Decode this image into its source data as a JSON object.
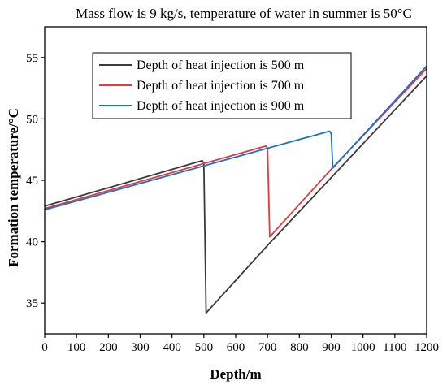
{
  "chart_data": {
    "type": "line",
    "title": "Mass flow is 9 kg/s, temperature of water in summer is 50°C",
    "xlabel": "Depth/m",
    "ylabel": "Formation temperature/°C",
    "xlim": [
      0,
      1200
    ],
    "ylim": [
      32.5,
      57.5
    ],
    "xticks": [
      0,
      100,
      200,
      300,
      400,
      500,
      600,
      700,
      800,
      900,
      1000,
      1100,
      1200
    ],
    "yticks": [
      35,
      40,
      45,
      50,
      55
    ],
    "grid": false,
    "legend_position": "top-center",
    "series": [
      {
        "name": "Depth of heat injection is 500 m",
        "color": "#3a3a3a",
        "x": [
          0,
          495,
          500,
          507,
          700,
          1200
        ],
        "y": [
          42.9,
          46.6,
          46.4,
          34.2,
          39.7,
          53.5
        ]
      },
      {
        "name": "Depth of heat injection is 700 m",
        "color": "#e8373f",
        "x": [
          0,
          695,
          700,
          707,
          900,
          1200
        ],
        "y": [
          42.7,
          47.8,
          47.6,
          40.4,
          45.9,
          54.1
        ]
      },
      {
        "name": "Depth of heat injection is 900 m",
        "color": "#1f6fc5",
        "x": [
          0,
          895,
          900,
          905,
          1200
        ],
        "y": [
          42.6,
          49.0,
          48.8,
          46.0,
          54.3
        ]
      }
    ]
  }
}
